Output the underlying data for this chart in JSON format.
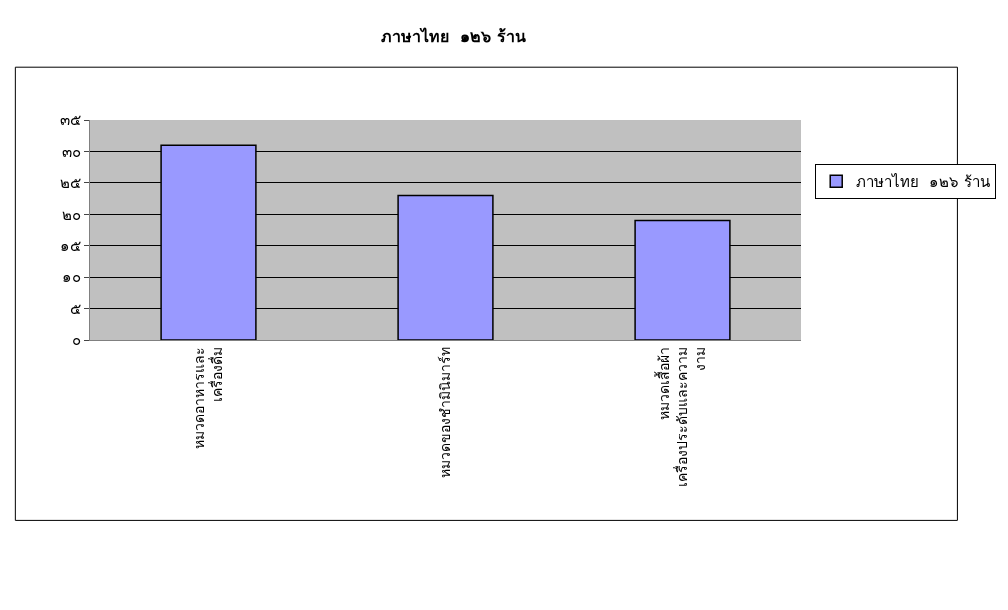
{
  "chart_data": {
    "type": "bar",
    "title": "ภาษาไทย  ๑๒๖ ร้าน",
    "categories": [
      "หมวดอาหารและ\nเครื่องดื่ม",
      "หมวดของชำมินิมาร์ท",
      "หมวดเสื้อผ้า\nเครื่องประดับและความ\nงาม"
    ],
    "series": [
      {
        "name": "ภาษาไทย  ๑๒๖ ร้าน",
        "color": "#9999ff",
        "values": [
          31,
          23,
          19
        ]
      }
    ],
    "ylim": [
      0,
      35
    ],
    "yticks": [
      {
        "value": 0,
        "label": "๐"
      },
      {
        "value": 5,
        "label": "๕"
      },
      {
        "value": 10,
        "label": "๑๐"
      },
      {
        "value": 15,
        "label": "๑๕"
      },
      {
        "value": 20,
        "label": "๒๐"
      },
      {
        "value": 25,
        "label": "๒๕"
      },
      {
        "value": 30,
        "label": "๓๐"
      },
      {
        "value": 35,
        "label": "๓๕"
      }
    ],
    "grid": "y",
    "legend": "right"
  }
}
